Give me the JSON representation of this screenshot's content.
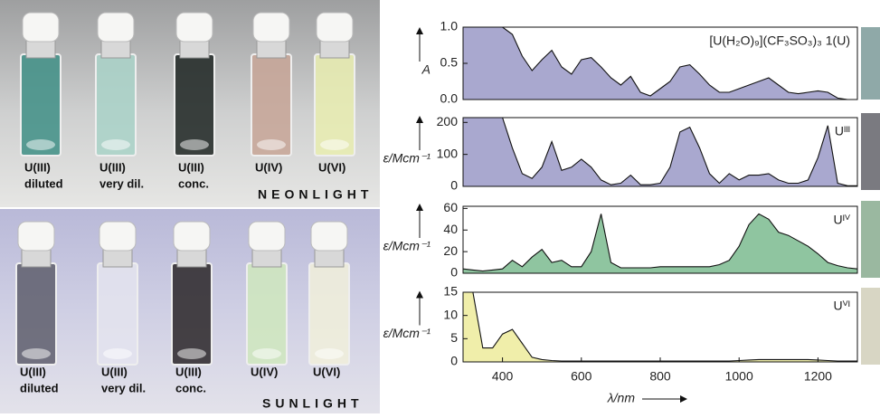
{
  "photos": {
    "neon": {
      "labels": [
        [
          "U(III)",
          "diluted"
        ],
        [
          "U(III)",
          "very dil."
        ],
        [
          "U(III)",
          "conc."
        ],
        [
          "U(IV)"
        ],
        [
          "U(VI)"
        ]
      ],
      "caption": "NEONLIGHT"
    },
    "sun": {
      "labels": [
        [
          "U(III)",
          "diluted"
        ],
        [
          "U(III)",
          "very dil."
        ],
        [
          "U(III)",
          "conc."
        ],
        [
          "U(IV)"
        ],
        [
          "U(VI)"
        ]
      ],
      "caption": "SUNLIGHT"
    }
  },
  "chart_data": [
    {
      "type": "area",
      "ylabel": "A",
      "annotation": "[U(H₂O)₉](CF₃SO₃)₃ 1(U)",
      "color": "#a9a8cf",
      "xlim": [
        300,
        1300
      ],
      "ylim": [
        0,
        1
      ],
      "yticks": [
        {
          "value": 0,
          "label": "0.0"
        },
        {
          "value": 0.5,
          "label": "0.5"
        },
        {
          "value": 1,
          "label": "1.0"
        }
      ],
      "x": [
        300,
        325,
        350,
        375,
        400,
        425,
        450,
        475,
        500,
        525,
        550,
        575,
        600,
        625,
        650,
        675,
        700,
        725,
        750,
        775,
        800,
        825,
        850,
        875,
        900,
        925,
        950,
        975,
        1000,
        1025,
        1050,
        1075,
        1100,
        1125,
        1150,
        1175,
        1200,
        1225,
        1250,
        1275,
        1300
      ],
      "values": [
        1.0,
        1.0,
        1.0,
        1.0,
        1.0,
        0.9,
        0.6,
        0.4,
        0.55,
        0.68,
        0.45,
        0.35,
        0.55,
        0.58,
        0.45,
        0.3,
        0.2,
        0.32,
        0.1,
        0.05,
        0.15,
        0.25,
        0.45,
        0.48,
        0.35,
        0.2,
        0.1,
        0.1,
        0.15,
        0.2,
        0.25,
        0.3,
        0.2,
        0.1,
        0.08,
        0.1,
        0.12,
        0.1,
        0.02,
        0.0,
        0.0
      ]
    },
    {
      "type": "area",
      "ylabel": "ε/Mcm⁻¹",
      "annotation": "Uᴵᴵᴵ",
      "color": "#a9a8cf",
      "xlim": [
        300,
        1300
      ],
      "ylim": [
        0,
        215
      ],
      "yticks": [
        0,
        100,
        200
      ],
      "x": [
        300,
        325,
        350,
        375,
        400,
        425,
        450,
        475,
        500,
        525,
        550,
        575,
        600,
        625,
        650,
        675,
        700,
        725,
        750,
        775,
        800,
        825,
        850,
        875,
        900,
        925,
        950,
        975,
        1000,
        1025,
        1050,
        1075,
        1100,
        1125,
        1150,
        1175,
        1200,
        1225,
        1250,
        1275,
        1300
      ],
      "values": [
        215,
        215,
        215,
        215,
        215,
        120,
        40,
        25,
        60,
        140,
        50,
        60,
        85,
        60,
        20,
        5,
        10,
        35,
        5,
        5,
        10,
        60,
        170,
        185,
        120,
        40,
        10,
        40,
        20,
        35,
        35,
        40,
        20,
        10,
        10,
        20,
        90,
        190,
        10,
        2,
        2
      ]
    },
    {
      "type": "area",
      "ylabel": "ε/Mcm⁻¹",
      "annotation": "Uᴵⱽ",
      "color": "#8fc5a0",
      "xlim": [
        300,
        1300
      ],
      "ylim": [
        0,
        62
      ],
      "yticks": [
        0,
        20,
        40,
        60
      ],
      "x": [
        300,
        325,
        350,
        375,
        400,
        425,
        450,
        475,
        500,
        525,
        550,
        575,
        600,
        625,
        650,
        675,
        700,
        725,
        750,
        775,
        800,
        825,
        850,
        875,
        900,
        925,
        950,
        975,
        1000,
        1025,
        1050,
        1075,
        1100,
        1125,
        1150,
        1175,
        1200,
        1225,
        1250,
        1275,
        1300
      ],
      "values": [
        4,
        3,
        2,
        3,
        4,
        12,
        6,
        15,
        22,
        10,
        12,
        6,
        6,
        20,
        55,
        10,
        5,
        5,
        5,
        5,
        6,
        6,
        6,
        6,
        6,
        6,
        8,
        12,
        25,
        45,
        55,
        50,
        38,
        35,
        30,
        25,
        18,
        10,
        7,
        5,
        4
      ]
    },
    {
      "type": "area",
      "ylabel": "ε/Mcm⁻¹",
      "annotation": "Uⱽᴵ",
      "color": "#f0eeaa",
      "xlim": [
        300,
        1300
      ],
      "ylim": [
        0,
        15
      ],
      "yticks": [
        0,
        5,
        10,
        15
      ],
      "xticks": [
        400,
        600,
        800,
        1000,
        1200
      ],
      "xlabel": "λ/nm",
      "x": [
        300,
        325,
        350,
        375,
        400,
        425,
        450,
        475,
        500,
        525,
        550,
        575,
        600,
        625,
        650,
        675,
        700,
        725,
        750,
        775,
        800,
        825,
        850,
        875,
        900,
        925,
        950,
        975,
        1000,
        1025,
        1050,
        1075,
        1100,
        1125,
        1150,
        1175,
        1200,
        1225,
        1250,
        1275,
        1300
      ],
      "values": [
        15,
        15,
        3,
        3,
        6,
        7,
        4,
        1,
        0.5,
        0.3,
        0.2,
        0.2,
        0.2,
        0.2,
        0.2,
        0.2,
        0.2,
        0.2,
        0.2,
        0.2,
        0.2,
        0.2,
        0.2,
        0.2,
        0.2,
        0.2,
        0.2,
        0.2,
        0.3,
        0.4,
        0.5,
        0.5,
        0.5,
        0.5,
        0.5,
        0.5,
        0.4,
        0.3,
        0.2,
        0.2,
        0.2
      ]
    }
  ]
}
